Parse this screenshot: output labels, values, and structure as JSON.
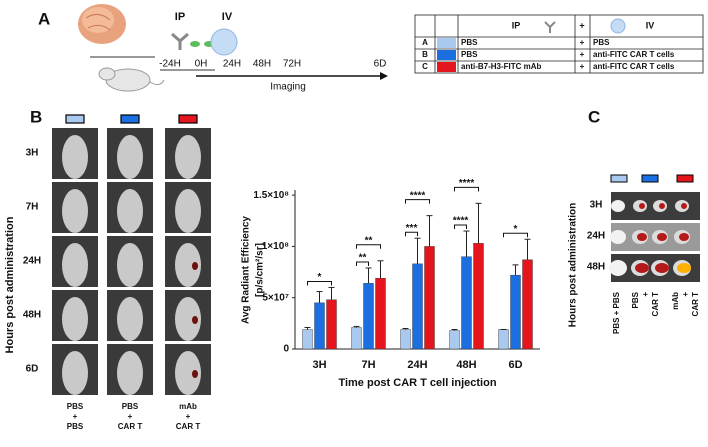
{
  "panel_a": {
    "letter": "A",
    "timeline": {
      "ip": "IP",
      "iv": "IV",
      "ticks": [
        "-24H",
        "0H",
        "24H",
        "48H",
        "72H",
        "6D"
      ],
      "imaging": "Imaging"
    },
    "table": {
      "header": [
        "IP",
        "+",
        "IV"
      ],
      "rows": [
        [
          "A",
          "PBS",
          "+",
          "PBS"
        ],
        [
          "B",
          "PBS",
          "+",
          "anti-FITC CAR T cells"
        ],
        [
          "C",
          "anti-B7-H3-FITC mAb",
          "+",
          "anti-FITC CAR T cells"
        ]
      ]
    }
  },
  "panel_b": {
    "letter": "B",
    "y_label": "Hours post administration",
    "rows": [
      "3H",
      "7H",
      "24H",
      "48H",
      "6D"
    ],
    "columns": [
      [
        "PBS",
        "+",
        "PBS"
      ],
      [
        "PBS",
        "+",
        "CAR T"
      ],
      [
        "mAb",
        "+",
        "CAR T"
      ]
    ]
  },
  "chart_data": {
    "type": "bar",
    "y_label": [
      "Avg Radiant Efficiency",
      "[p/s/cm²/sr]"
    ],
    "x_label": "Time post CAR T cell injection",
    "categories": [
      "3H",
      "7H",
      "24H",
      "48H",
      "6D"
    ],
    "series": [
      {
        "color": "#a9c9ee",
        "values": [
          19000000,
          21000000,
          19000000,
          18000000,
          19000000
        ],
        "errors": [
          2000000,
          1000000,
          1000000,
          1000000,
          0
        ]
      },
      {
        "color": "#1b6fe0",
        "values": [
          45000000,
          64000000,
          83000000,
          90000000,
          72000000
        ],
        "errors": [
          11000000,
          15000000,
          25000000,
          25000000,
          10000000
        ]
      },
      {
        "color": "#e5151d",
        "values": [
          48000000,
          69000000,
          100000000,
          103000000,
          87000000
        ],
        "errors": [
          12000000,
          17000000,
          30000000,
          39000000,
          20000000
        ]
      }
    ],
    "ylim": [
      0,
      155000000
    ],
    "yticks": [
      0,
      {
        "value": 50000000,
        "label": "5×10⁷"
      },
      {
        "value": 100000000,
        "label": "1×10⁸"
      },
      {
        "value": 150000000,
        "label": "1.5×10⁸"
      }
    ],
    "significance": [
      {
        "category": 0,
        "from": 0,
        "to": 2,
        "label": "*"
      },
      {
        "category": 1,
        "from": 0,
        "to": 1,
        "label": "**"
      },
      {
        "category": 1,
        "from": 0,
        "to": 2,
        "label": "**"
      },
      {
        "category": 2,
        "from": 0,
        "to": 1,
        "label": "***"
      },
      {
        "category": 2,
        "from": 0,
        "to": 2,
        "label": "****"
      },
      {
        "category": 3,
        "from": 0,
        "to": 1,
        "label": "****"
      },
      {
        "category": 3,
        "from": 0,
        "to": 2,
        "label": "****"
      },
      {
        "category": 4,
        "from": 0,
        "to": 2,
        "label": "*"
      }
    ]
  },
  "panel_c": {
    "letter": "C",
    "y_label": "Hours post administration",
    "rows": [
      "3H",
      "24H",
      "48H"
    ],
    "columns": [
      [
        "PBS + PBS"
      ],
      [
        "PBS",
        "+",
        "CAR T"
      ],
      [
        "mAb",
        "+",
        "CAR T"
      ]
    ]
  }
}
